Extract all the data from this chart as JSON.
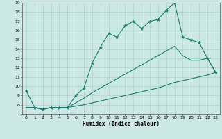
{
  "xlabel": "Humidex (Indice chaleur)",
  "bg_color": "#cce8e4",
  "grid_color": "#aad4ce",
  "line_color": "#1a7a6e",
  "line1_x": [
    0,
    1,
    2,
    3,
    4,
    5,
    6,
    7,
    8,
    9,
    10,
    11,
    12,
    13,
    14,
    15,
    16,
    17,
    18,
    19,
    20,
    21,
    22,
    23
  ],
  "line1_y": [
    9.5,
    7.7,
    7.5,
    7.7,
    7.7,
    7.7,
    9.0,
    9.8,
    12.5,
    14.2,
    15.7,
    15.3,
    16.5,
    17.0,
    16.2,
    17.0,
    17.2,
    18.2,
    19.0,
    15.3,
    15.0,
    14.7,
    13.0,
    11.5
  ],
  "line2_x": [
    0,
    1,
    2,
    3,
    4,
    5,
    6,
    7,
    8,
    9,
    10,
    11,
    12,
    13,
    14,
    15,
    16,
    17,
    18,
    19,
    20,
    21,
    22,
    23
  ],
  "line2_y": [
    7.7,
    7.7,
    7.5,
    7.7,
    7.7,
    7.7,
    7.85,
    8.0,
    8.2,
    8.4,
    8.6,
    8.8,
    9.0,
    9.2,
    9.4,
    9.6,
    9.8,
    10.1,
    10.4,
    10.6,
    10.8,
    11.0,
    11.2,
    11.5
  ],
  "line3_x": [
    0,
    1,
    2,
    3,
    4,
    5,
    6,
    7,
    8,
    9,
    10,
    11,
    12,
    13,
    14,
    15,
    16,
    17,
    18,
    19,
    20,
    21,
    22,
    23
  ],
  "line3_y": [
    7.7,
    7.7,
    7.5,
    7.7,
    7.7,
    7.7,
    8.2,
    8.7,
    9.3,
    9.8,
    10.3,
    10.8,
    11.3,
    11.8,
    12.3,
    12.8,
    13.3,
    13.8,
    14.3,
    13.3,
    12.8,
    12.8,
    13.0,
    11.5
  ],
  "xlim": [
    -0.5,
    23.5
  ],
  "ylim": [
    7,
    19
  ],
  "xticks": [
    0,
    1,
    2,
    3,
    4,
    5,
    6,
    7,
    8,
    9,
    10,
    11,
    12,
    13,
    14,
    15,
    16,
    17,
    18,
    19,
    20,
    21,
    22,
    23
  ],
  "yticks": [
    7,
    8,
    9,
    10,
    11,
    12,
    13,
    14,
    15,
    16,
    17,
    18,
    19
  ]
}
